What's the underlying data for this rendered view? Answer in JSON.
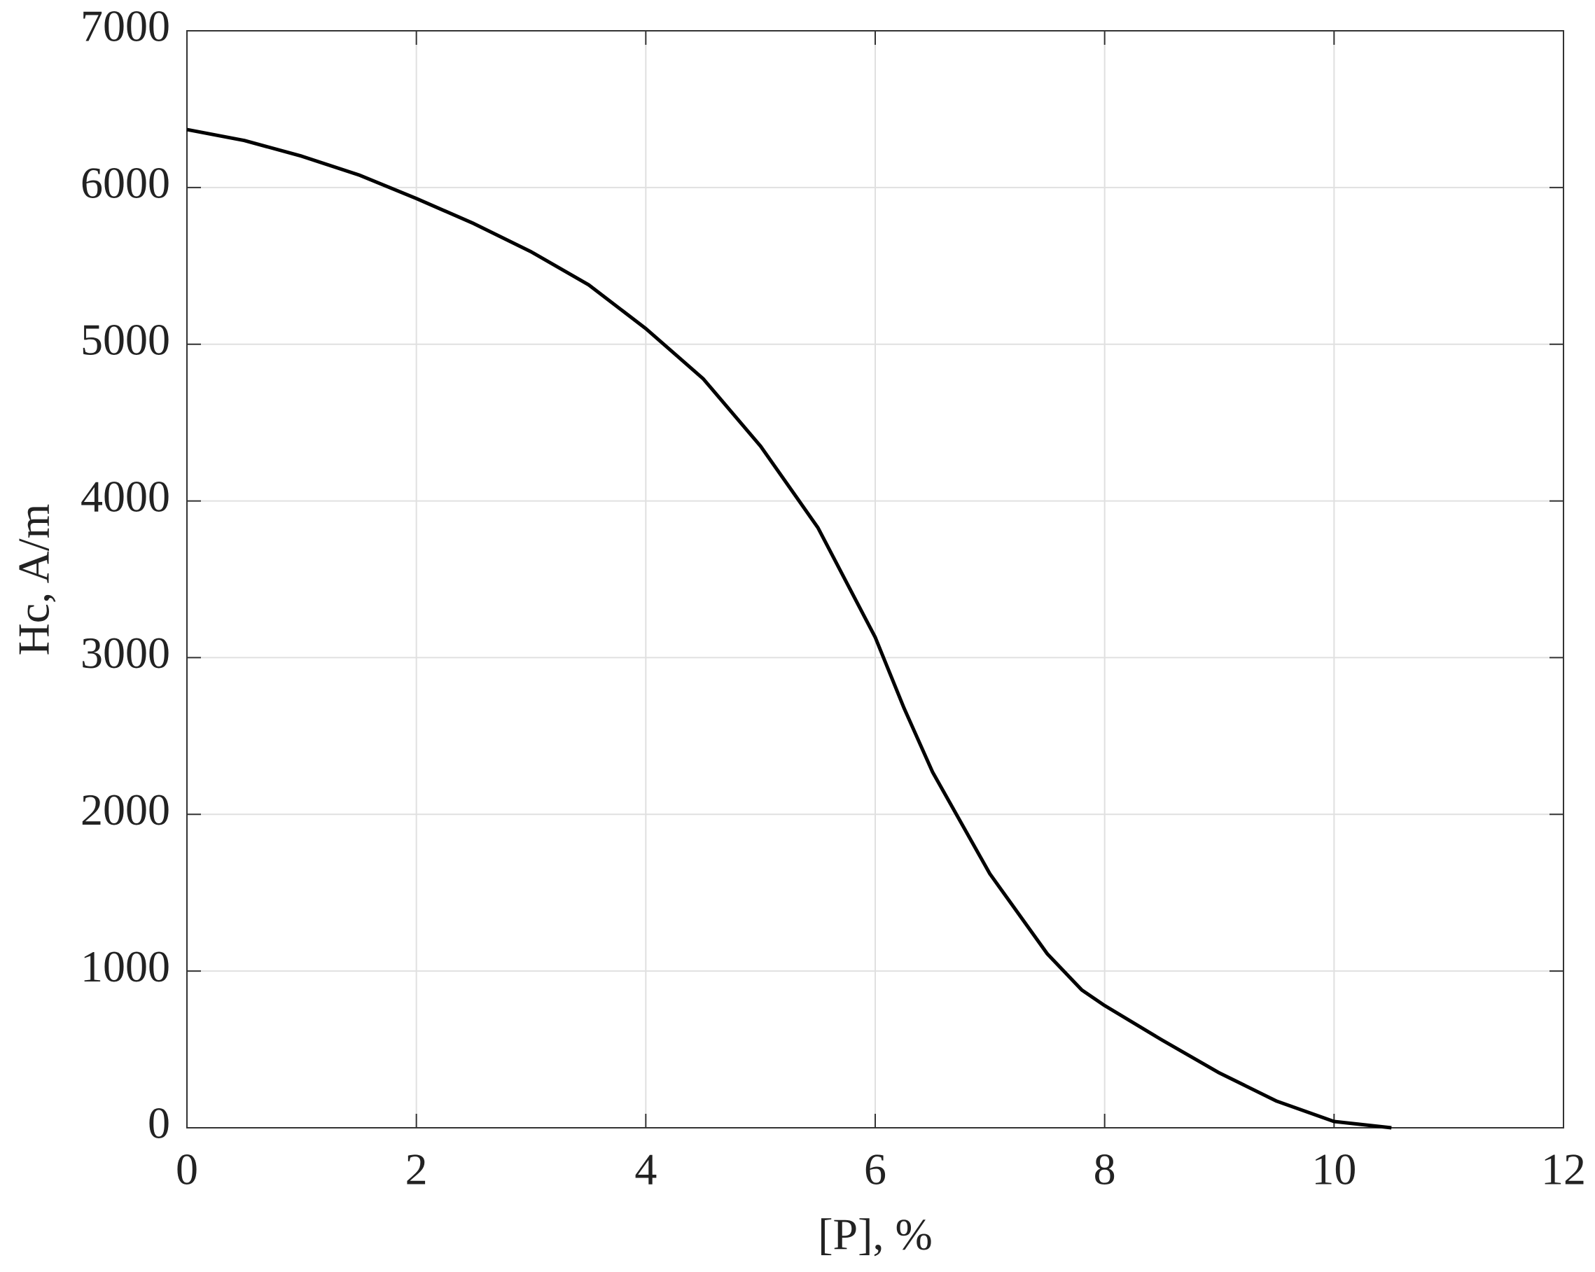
{
  "chart_data": {
    "type": "line",
    "xlabel": "[P], %",
    "ylabel": "Hc, A/m",
    "x": [
      0,
      0.5,
      1,
      1.5,
      2,
      2.5,
      3,
      3.5,
      4,
      4.5,
      5,
      5.5,
      6,
      6.25,
      6.5,
      7,
      7.5,
      7.8,
      8,
      8.5,
      9,
      9.5,
      10,
      10.5
    ],
    "series": [
      {
        "name": "Hc",
        "color": "#000000",
        "values": [
          6370,
          6300,
          6200,
          6080,
          5930,
          5770,
          5590,
          5380,
          5100,
          4780,
          4350,
          3830,
          3130,
          2680,
          2270,
          1620,
          1110,
          880,
          780,
          560,
          350,
          170,
          40,
          0
        ]
      }
    ],
    "xlim": [
      0,
      12
    ],
    "xticks": [
      0,
      2,
      4,
      6,
      8,
      10,
      12
    ],
    "ylim": [
      0,
      7000
    ],
    "yticks": [
      0,
      1000,
      2000,
      3000,
      4000,
      5000,
      6000,
      7000
    ],
    "grid": true
  }
}
